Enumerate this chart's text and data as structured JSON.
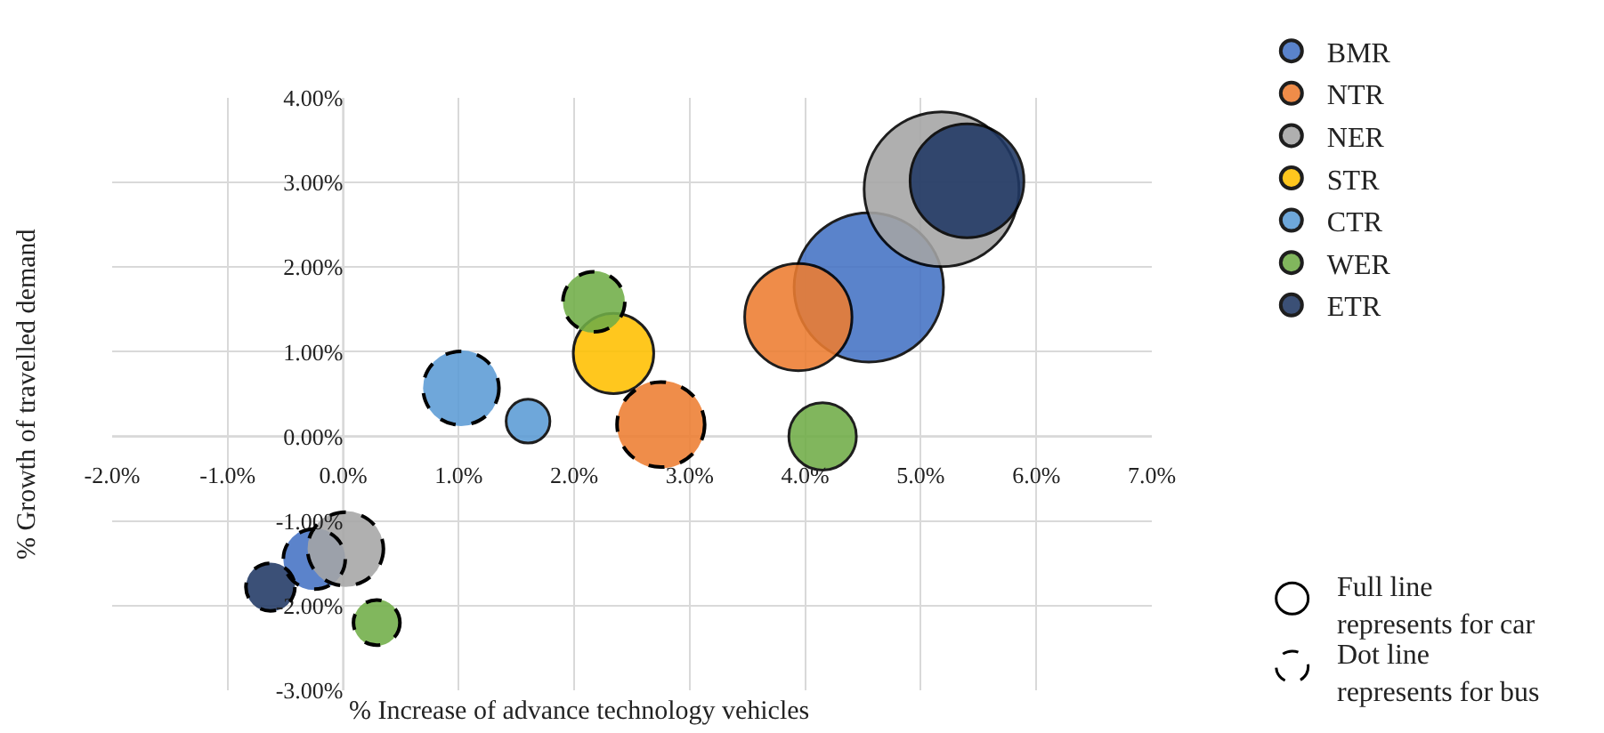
{
  "chart_data": {
    "type": "bubble",
    "xlabel": "% Increase of advance technology vehicles",
    "ylabel": "% Growth of travelled demand",
    "xlim": [
      -2,
      7
    ],
    "xticks": [
      {
        "value": -2,
        "label": "-2.0%"
      },
      {
        "value": -1,
        "label": "-1.0%"
      },
      {
        "value": 0,
        "label": "0.0%"
      },
      {
        "value": 1,
        "label": "1.0%"
      },
      {
        "value": 2,
        "label": "2.0%"
      },
      {
        "value": 3,
        "label": "3.0%"
      },
      {
        "value": 4,
        "label": "4.0%"
      },
      {
        "value": 5,
        "label": "5.0%"
      },
      {
        "value": 6,
        "label": "6.0%"
      },
      {
        "value": 7,
        "label": "7.0%"
      }
    ],
    "ylim": [
      -3,
      4
    ],
    "yticks": [
      {
        "value": -3,
        "label": "-3.00%"
      },
      {
        "value": -2,
        "label": "-2.00%"
      },
      {
        "value": -1,
        "label": "-1.00%"
      },
      {
        "value": 0,
        "label": "0.00%"
      },
      {
        "value": 1,
        "label": "1.00%"
      },
      {
        "value": 2,
        "label": "2.00%"
      },
      {
        "value": 3,
        "label": "3.00%"
      },
      {
        "value": 4,
        "label": "4.00%"
      }
    ],
    "grid": true,
    "legend": "right",
    "series": [
      {
        "name": "BMR",
        "color": "#4472c4",
        "line_style": "solid",
        "x": [
          4.55
        ],
        "values": [
          1.76
        ],
        "sizes": [
          0.93
        ]
      },
      {
        "name": "NTR",
        "color": "#ed7d31",
        "line_style": "solid",
        "x": [
          3.94
        ],
        "values": [
          1.41
        ],
        "sizes": [
          0.48
        ]
      },
      {
        "name": "NER",
        "color": "#a5a5a5",
        "line_style": "solid",
        "x": [
          5.18
        ],
        "values": [
          2.92
        ],
        "sizes": [
          1.0
        ]
      },
      {
        "name": "STR",
        "color": "#ffc000",
        "line_style": "solid",
        "x": [
          2.34
        ],
        "values": [
          0.98
        ],
        "sizes": [
          0.27
        ]
      },
      {
        "name": "CTR",
        "color": "#5b9bd5",
        "line_style": "solid",
        "x": [
          1.6
        ],
        "values": [
          0.18
        ],
        "sizes": [
          0.08
        ]
      },
      {
        "name": "WER",
        "color": "#70ad47",
        "line_style": "solid",
        "x": [
          4.15
        ],
        "values": [
          0.0
        ],
        "sizes": [
          0.19
        ]
      },
      {
        "name": "ETR",
        "color": "#203864",
        "line_style": "solid",
        "x": [
          5.4
        ],
        "values": [
          3.02
        ],
        "sizes": [
          0.54
        ]
      },
      {
        "color": "#4472c4",
        "line_style": "dashed",
        "x": [
          -0.25
        ],
        "values": [
          -1.45
        ],
        "sizes": [
          0.16
        ]
      },
      {
        "color": "#ed7d31",
        "line_style": "dashed",
        "x": [
          2.75
        ],
        "values": [
          0.14
        ],
        "sizes": [
          0.32
        ]
      },
      {
        "color": "#a5a5a5",
        "line_style": "dashed",
        "x": [
          0.02
        ],
        "values": [
          -1.33
        ],
        "sizes": [
          0.24
        ]
      },
      {
        "color": "#5b9bd5",
        "line_style": "dashed",
        "x": [
          1.02
        ],
        "values": [
          0.57
        ],
        "sizes": [
          0.24
        ]
      },
      {
        "color": "#70ad47",
        "line_style": "dashed",
        "x": [
          2.17,
          0.29
        ],
        "values": [
          1.59,
          -2.2
        ],
        "sizes": [
          0.16,
          0.09
        ]
      },
      {
        "color": "#203864",
        "line_style": "dashed",
        "x": [
          -0.63
        ],
        "values": [
          -1.78
        ],
        "sizes": [
          0.1
        ]
      }
    ],
    "annotations": [
      "Full line\nrepresents for car",
      "Dot line\nrepresents for bus"
    ]
  }
}
